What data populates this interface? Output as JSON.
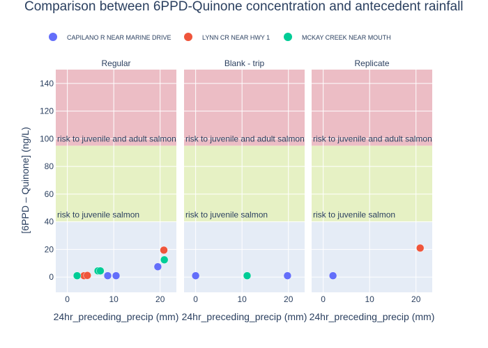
{
  "chart_data": {
    "type": "scatter",
    "title": "Comparison between 6PPD-Quinone concentration and antecedent rainfall",
    "xlabel": "24hr_preceding_precip (mm)",
    "ylabel": "[6PPD – Quinone] (ng/L)",
    "xlim": [
      -2.5,
      23.5
    ],
    "ylim": [
      -11,
      150
    ],
    "xticks": [
      0,
      10,
      20
    ],
    "yticks": [
      0,
      20,
      40,
      60,
      80,
      100,
      120,
      140
    ],
    "legend_position": "top",
    "facets": [
      "Regular",
      "Blank - trip",
      "Replicate"
    ],
    "bands": [
      {
        "y0": -11,
        "y1": 40,
        "color": "#e5ecf6",
        "label": ""
      },
      {
        "y0": 40,
        "y1": 95,
        "color": "#e6f1c4",
        "label": "risk to juvenile salmon"
      },
      {
        "y0": 95,
        "y1": 150,
        "color": "#ecbdc5",
        "label": "risk to juvenile and adult salmon"
      }
    ],
    "series": [
      {
        "name": "CAPILANO R NEAR MARINE DRIVE",
        "color": "#636efa",
        "points": {
          "Regular": [
            [
              8.7,
              1
            ],
            [
              10.5,
              1
            ],
            [
              19.5,
              7.5
            ]
          ],
          "Blank - trip": [
            [
              0,
              1
            ],
            [
              19.8,
              1
            ]
          ],
          "Replicate": [
            [
              2.1,
              1
            ]
          ]
        }
      },
      {
        "name": "LYNN CR NEAR HWY 1",
        "color": "#ef553b",
        "points": {
          "Regular": [
            [
              3.6,
              1
            ],
            [
              4.3,
              1.2
            ],
            [
              20.8,
              19.5
            ]
          ],
          "Blank - trip": [],
          "Replicate": [
            [
              20.9,
              21
            ]
          ]
        }
      },
      {
        "name": "MCKAY CREEK NEAR MOUTH",
        "color": "#00cc96",
        "points": {
          "Regular": [
            [
              2.1,
              1
            ],
            [
              6.6,
              4.5
            ],
            [
              7.1,
              4.5
            ],
            [
              20.9,
              12.5
            ]
          ],
          "Blank - trip": [
            [
              11.1,
              1
            ]
          ],
          "Replicate": []
        }
      }
    ]
  }
}
